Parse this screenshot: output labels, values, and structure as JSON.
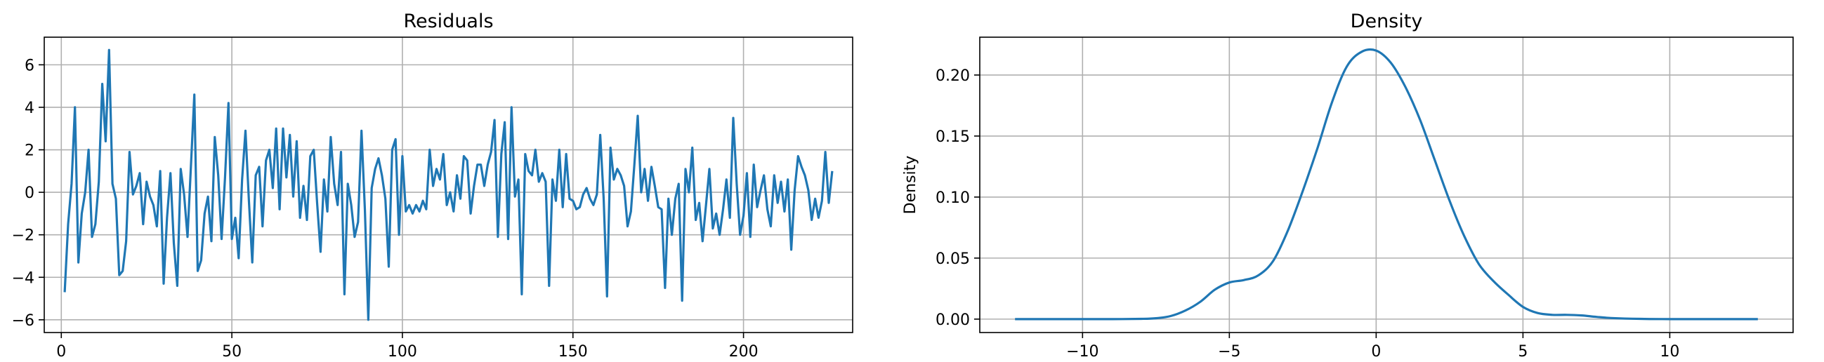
{
  "chart_data": [
    {
      "type": "line",
      "title": "Residuals",
      "xlabel": "",
      "ylabel": "",
      "xlim": [
        -5,
        232
      ],
      "ylim": [
        -6.6,
        7.3
      ],
      "xticks": [
        0,
        50,
        100,
        150,
        200
      ],
      "yticks": [
        -6,
        -4,
        -2,
        0,
        2,
        4,
        6
      ],
      "grid": true,
      "color": "#1f77b4",
      "x_start": 1,
      "values": [
        -4.7,
        -1.5,
        0.4,
        4.0,
        -3.3,
        -1.0,
        0.0,
        2.0,
        -2.1,
        -1.5,
        0.5,
        5.1,
        2.4,
        6.7,
        0.4,
        -0.3,
        -3.9,
        -3.7,
        -2.3,
        1.9,
        -0.1,
        0.3,
        0.9,
        -1.5,
        0.5,
        -0.2,
        -0.6,
        -1.6,
        1.0,
        -4.3,
        -1.2,
        0.9,
        -2.4,
        -4.4,
        1.1,
        -0.1,
        -2.1,
        1.2,
        4.6,
        -3.7,
        -3.2,
        -1.0,
        -0.2,
        -2.3,
        2.6,
        0.8,
        -2.2,
        0.7,
        4.2,
        -2.2,
        -1.2,
        -3.1,
        0.6,
        2.9,
        -0.4,
        -3.3,
        0.8,
        1.2,
        -1.6,
        1.5,
        2.0,
        0.2,
        3.0,
        -0.8,
        3.0,
        0.7,
        2.7,
        -0.2,
        2.4,
        -1.2,
        0.3,
        -1.3,
        1.7,
        2.0,
        -0.5,
        -2.8,
        0.6,
        -0.9,
        2.6,
        0.4,
        -0.6,
        1.9,
        -4.8,
        0.4,
        -0.6,
        -2.1,
        -1.4,
        2.9,
        -0.8,
        -6.0,
        0.2,
        1.1,
        1.6,
        0.8,
        -0.3,
        -3.5,
        2.0,
        2.5,
        -2.0,
        1.7,
        -0.9,
        -0.6,
        -1.0,
        -0.6,
        -0.9,
        -0.4,
        -0.8,
        2.0,
        0.3,
        1.1,
        0.6,
        1.8,
        -0.6,
        0.0,
        -0.9,
        0.8,
        -0.3,
        1.7,
        1.5,
        -1.0,
        0.3,
        1.3,
        1.3,
        0.3,
        1.3,
        1.9,
        3.4,
        -2.1,
        1.8,
        3.3,
        -2.2,
        4.0,
        -0.2,
        0.6,
        -4.8,
        1.8,
        1.0,
        0.8,
        2.0,
        0.5,
        0.9,
        0.5,
        -4.4,
        0.6,
        -0.4,
        2.0,
        -0.7,
        1.8,
        -0.3,
        -0.4,
        -0.8,
        -0.7,
        -0.1,
        0.2,
        -0.3,
        -0.6,
        -0.1,
        2.7,
        -0.3,
        -4.9,
        2.1,
        0.6,
        1.1,
        0.8,
        0.3,
        -1.6,
        -0.9,
        1.3,
        3.6,
        0.0,
        1.1,
        -0.4,
        1.2,
        0.3,
        -0.7,
        -0.8,
        -4.5,
        -0.3,
        -2.0,
        -0.3,
        0.4,
        -5.1,
        1.1,
        0.0,
        2.1,
        -1.3,
        -0.5,
        -2.3,
        -0.6,
        1.1,
        -1.7,
        -1.0,
        -2.0,
        -0.8,
        0.6,
        -1.2,
        3.5,
        0.4,
        -2.0,
        -1.1,
        0.9,
        -2.1,
        1.3,
        -0.7,
        0.1,
        0.8,
        -0.8,
        -1.6,
        0.8,
        -0.5,
        0.5,
        -0.9,
        0.6,
        -2.7,
        0.1,
        1.7,
        1.2,
        0.8,
        0.1,
        -1.3,
        -0.3,
        -1.2,
        -0.4,
        1.9,
        -0.5,
        1.0
      ]
    },
    {
      "type": "line",
      "title": "Density",
      "xlabel": "",
      "ylabel": "Density",
      "xlim": [
        -13.5,
        14.2
      ],
      "ylim": [
        -0.011,
        0.231
      ],
      "xticks": [
        -10,
        -5,
        0,
        5,
        10
      ],
      "yticks": [
        0.0,
        0.05,
        0.1,
        0.15,
        0.2
      ],
      "ytick_labels": [
        "0.00",
        "0.05",
        "0.10",
        "0.15",
        "0.20"
      ],
      "grid": true,
      "color": "#1f77b4",
      "x": [
        -12.3,
        -11,
        -10,
        -9,
        -8,
        -7.5,
        -7,
        -6.5,
        -6,
        -5.5,
        -5,
        -4.5,
        -4,
        -3.5,
        -3,
        -2.5,
        -2,
        -1.5,
        -1,
        -0.5,
        0,
        0.5,
        1,
        1.5,
        2,
        2.5,
        3,
        3.5,
        4,
        4.5,
        5,
        5.5,
        6,
        6.5,
        7,
        7.5,
        8,
        9,
        10,
        11,
        13
      ],
      "y": [
        0.0,
        0.0,
        0.0,
        0.0,
        0.0002,
        0.0007,
        0.0025,
        0.007,
        0.014,
        0.024,
        0.03,
        0.032,
        0.036,
        0.048,
        0.073,
        0.105,
        0.14,
        0.178,
        0.207,
        0.219,
        0.22,
        0.21,
        0.19,
        0.163,
        0.13,
        0.097,
        0.068,
        0.045,
        0.031,
        0.02,
        0.01,
        0.005,
        0.0035,
        0.0035,
        0.003,
        0.0018,
        0.0009,
        0.0002,
        0.0,
        0.0,
        0.0
      ]
    }
  ]
}
